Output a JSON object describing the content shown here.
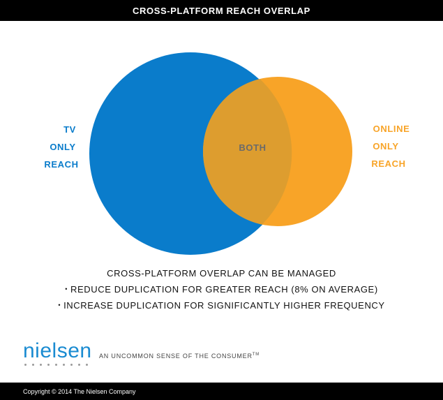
{
  "header": {
    "title": "CROSS-PLATFORM REACH OVERLAP"
  },
  "venn": {
    "left_label": [
      "TV",
      "ONLY",
      "REACH"
    ],
    "overlap_label": "BOTH",
    "right_label": [
      "ONLINE",
      "ONLY",
      "REACH"
    ],
    "colors": {
      "tv": "#0a7ccb",
      "online": "#f8a428",
      "overlap": "#dd9d2f",
      "overlap_text": "#6a6a6a"
    }
  },
  "notes": {
    "headline": "CROSS-PLATFORM OVERLAP CAN BE MANAGED",
    "items": [
      "REDUCE DUPLICATION FOR GREATER REACH (8% ON AVERAGE)",
      "INCREASE DUPLICATION FOR SIGNIFICANTLY HIGHER FREQUENCY"
    ]
  },
  "brand": {
    "logo_text": "nielsen",
    "tagline": "AN UNCOMMON SENSE OF THE CONSUMER",
    "trademark": "TM"
  },
  "footer": {
    "copyright": "Copyright © 2014 The Nielsen Company"
  }
}
